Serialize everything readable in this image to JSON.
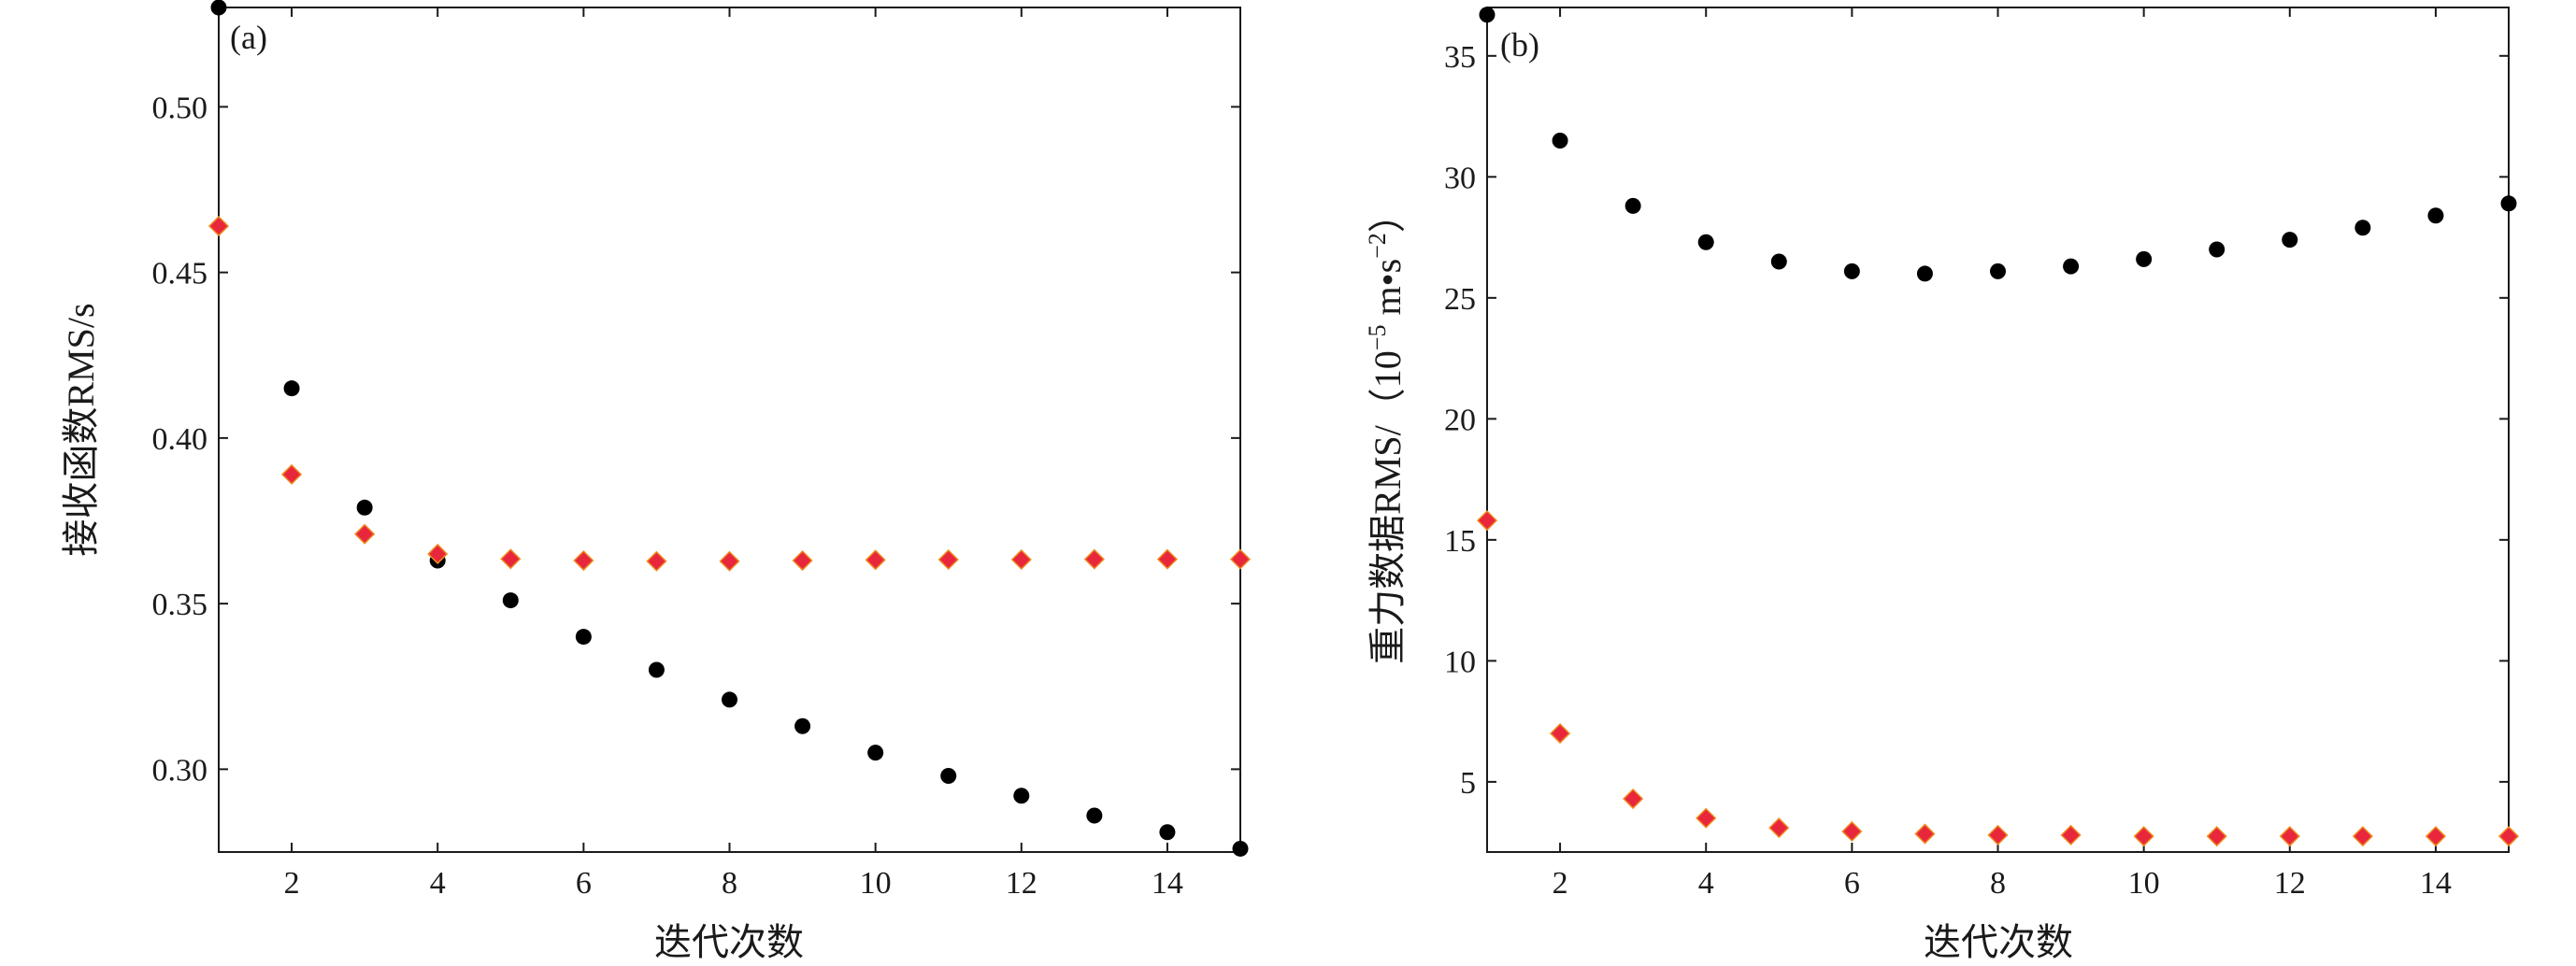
{
  "chart_data": [
    {
      "type": "scatter",
      "panel_label": "(a)",
      "xlabel": "迭代次数",
      "ylabel": "接收函数RMS/s",
      "xlim": [
        1,
        15
      ],
      "ylim": [
        0.275,
        0.53
      ],
      "xticks": [
        2,
        4,
        6,
        8,
        10,
        12,
        14
      ],
      "yticks": [
        0.3,
        0.35,
        0.4,
        0.45,
        0.5
      ],
      "ytick_labels": [
        "0.30",
        "0.35",
        "0.40",
        "0.45",
        "0.50"
      ],
      "grid": false,
      "series": [
        {
          "marker": "circle",
          "color": "#000000",
          "x": [
            1,
            2,
            3,
            4,
            5,
            6,
            7,
            8,
            9,
            10,
            11,
            12,
            13,
            14,
            15
          ],
          "y": [
            0.53,
            0.415,
            0.379,
            0.363,
            0.351,
            0.34,
            0.33,
            0.321,
            0.313,
            0.305,
            0.298,
            0.292,
            0.286,
            0.281,
            0.276
          ]
        },
        {
          "marker": "diamond",
          "color": "#e8263c",
          "edge_color": "#f08a1e",
          "x": [
            1,
            2,
            3,
            4,
            5,
            6,
            7,
            8,
            9,
            10,
            11,
            12,
            13,
            14,
            15
          ],
          "y": [
            0.464,
            0.389,
            0.371,
            0.365,
            0.3635,
            0.363,
            0.3628,
            0.3628,
            0.363,
            0.3632,
            0.3633,
            0.3633,
            0.3634,
            0.3634,
            0.3634
          ]
        }
      ]
    },
    {
      "type": "scatter",
      "panel_label": "(b)",
      "xlabel": "迭代次数",
      "ylabel_main": "重力数据RMS/（10",
      "ylabel_exp1": "−5",
      "ylabel_mid": " m•s",
      "ylabel_exp2": "−2",
      "ylabel_end": "）",
      "xlim": [
        1,
        15
      ],
      "ylim": [
        2.1,
        37
      ],
      "xticks": [
        2,
        4,
        6,
        8,
        10,
        12,
        14
      ],
      "yticks": [
        5,
        10,
        15,
        20,
        25,
        30,
        35
      ],
      "ytick_labels": [
        "5",
        "10",
        "15",
        "20",
        "25",
        "30",
        "35"
      ],
      "grid": false,
      "series": [
        {
          "marker": "circle",
          "color": "#000000",
          "x": [
            1,
            2,
            3,
            4,
            5,
            6,
            7,
            8,
            9,
            10,
            11,
            12,
            13,
            14,
            15
          ],
          "y": [
            36.7,
            31.5,
            28.8,
            27.3,
            26.5,
            26.1,
            26.0,
            26.1,
            26.3,
            26.6,
            27.0,
            27.4,
            27.9,
            28.4,
            28.9
          ]
        },
        {
          "marker": "diamond",
          "color": "#e8263c",
          "edge_color": "#f08a1e",
          "x": [
            1,
            2,
            3,
            4,
            5,
            6,
            7,
            8,
            9,
            10,
            11,
            12,
            13,
            14,
            15
          ],
          "y": [
            15.8,
            7.0,
            4.3,
            3.5,
            3.1,
            2.95,
            2.85,
            2.8,
            2.8,
            2.75,
            2.75,
            2.75,
            2.75,
            2.75,
            2.75
          ]
        }
      ]
    }
  ]
}
